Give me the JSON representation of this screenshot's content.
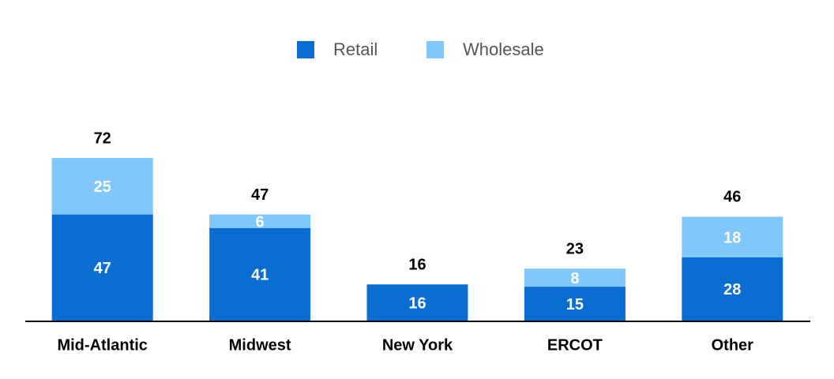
{
  "chart_data": {
    "type": "stacked-bar",
    "categories": [
      "Mid-Atlantic",
      "Midwest",
      "New York",
      "ERCOT",
      "Other"
    ],
    "series": [
      {
        "name": "Retail",
        "color": "#0a6dd1",
        "values": [
          47,
          41,
          16,
          15,
          28
        ]
      },
      {
        "name": "Wholesale",
        "color": "#80c8fb",
        "values": [
          25,
          6,
          null,
          8,
          18
        ]
      }
    ],
    "totals": [
      72,
      47,
      16,
      23,
      46
    ],
    "legend": "top"
  }
}
